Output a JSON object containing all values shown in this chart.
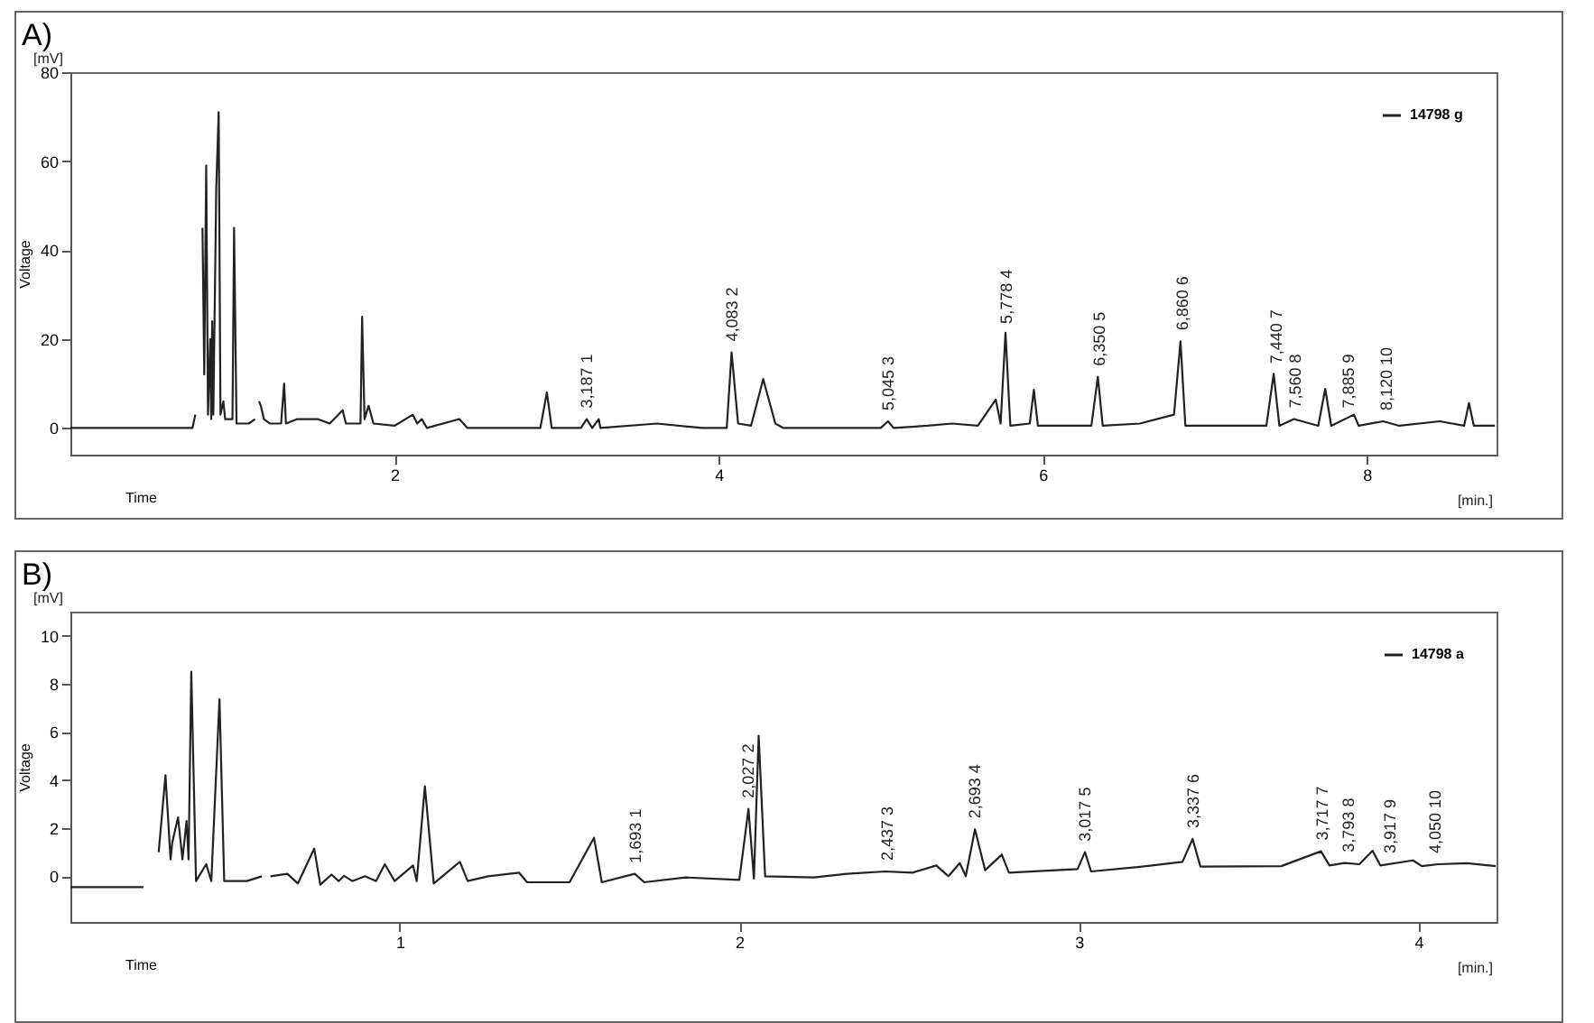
{
  "chart_data": [
    {
      "type": "line",
      "title": "A)",
      "xlabel": "Time",
      "ylabel": "Voltage",
      "annotations": [
        "[mV]",
        "[min.]",
        {
          "text": "3,187  1",
          "x": 3.187,
          "y": 2
        },
        {
          "text": "4,083  2",
          "x": 4.083,
          "y": 17
        },
        {
          "text": "5,045  3",
          "x": 5.045,
          "y": 1.5
        },
        {
          "text": "5,778  4",
          "x": 5.778,
          "y": 21
        },
        {
          "text": "6,350  5",
          "x": 6.35,
          "y": 11.5
        },
        {
          "text": "6,860  6",
          "x": 6.86,
          "y": 19.5
        },
        {
          "text": "7,440  7",
          "x": 7.44,
          "y": 12
        },
        {
          "text": "7,560  8",
          "x": 7.56,
          "y": 2
        },
        {
          "text": "7,885  9",
          "x": 7.885,
          "y": 2
        },
        {
          "text": "8,120  10",
          "x": 8.12,
          "y": 1.5
        }
      ],
      "xlim": [
        0,
        8.8
      ],
      "xticks": [
        2,
        4,
        6,
        8
      ],
      "ylim": [
        -6,
        80
      ],
      "yticks": [
        0,
        20,
        40,
        60,
        80
      ],
      "grid": false,
      "legend": "top right",
      "line_style": "solid",
      "marker": "none",
      "series": [
        {
          "name": "14798 g",
          "color": "#222222",
          "x": [
            0,
            0.753,
            0.771,
            0.789,
            0.81,
            0.815,
            0.826,
            0.838,
            0.849,
            0.863,
            0.869,
            0.875,
            0.882,
            0.9,
            0.915,
            0.926,
            0.944,
            0.955,
            1.0,
            1.01,
            1.025,
            1.05,
            1.1,
            1.139,
            1.15,
            1.16,
            1.164,
            1.175,
            1.194,
            1.23,
            1.3,
            1.319,
            1.33,
            1.4,
            1.47,
            1.525,
            1.6,
            1.68,
            1.7,
            1.79,
            1.8,
            1.815,
            1.84,
            1.87,
            2.0,
            2.113,
            2.14,
            2.168,
            2.2,
            2.4,
            2.45,
            2.9,
            2.94,
            2.97,
            3.15,
            3.186,
            3.22,
            3.26,
            3.27,
            3.62,
            3.9,
            4.05,
            4.08,
            4.12,
            4.2,
            4.275,
            4.35,
            4.4,
            5.0,
            5.045,
            5.08,
            5.29,
            5.44,
            5.6,
            5.71,
            5.74,
            5.77,
            5.8,
            5.92,
            5.945,
            5.97,
            6.3,
            6.34,
            6.37,
            6.6,
            6.81,
            6.85,
            6.88,
            7.38,
            7.425,
            7.46,
            7.55,
            7.7,
            7.743,
            7.78,
            7.92,
            7.95,
            8.1,
            8.2,
            8.45,
            8.6,
            8.63,
            8.66,
            8.79
          ],
          "values": [
            0,
            0,
            3,
            null,
            null,
            45,
            12,
            59,
            3,
            20,
            2,
            24,
            3,
            54,
            71,
            3,
            6,
            2,
            2,
            45,
            1,
            1,
            1,
            2,
            null,
            null,
            6,
            5,
            2,
            1,
            1,
            10,
            1,
            2,
            2,
            2,
            1,
            4,
            1,
            1,
            25,
            2,
            5,
            1,
            0.5,
            3,
            1,
            2,
            0,
            2,
            0,
            0,
            8,
            0,
            0,
            2,
            0,
            2,
            0,
            1,
            0,
            0,
            17,
            1,
            0.5,
            11,
            1,
            0,
            0,
            1.5,
            0,
            0.5,
            1,
            0.5,
            6.4,
            1,
            21.4,
            0.5,
            1,
            8.6,
            0.5,
            0.5,
            11.5,
            0.5,
            1,
            3,
            19.5,
            0.5,
            0.5,
            12.2,
            0.5,
            2,
            0.5,
            8.8,
            0.5,
            3,
            0.5,
            1.5,
            0.5,
            1.5,
            0.5,
            5.6,
            0.5,
            0.5
          ]
        }
      ]
    },
    {
      "type": "line",
      "title": "B)",
      "xlabel": "Time",
      "ylabel": "Voltage",
      "annotations": [
        "[mV]",
        "[min.]",
        {
          "text": "1,693  1",
          "x": 1.693,
          "y": 0.1
        },
        {
          "text": "2,027  2",
          "x": 2.027,
          "y": 2.8
        },
        {
          "text": "2,437  3",
          "x": 2.437,
          "y": 0.2
        },
        {
          "text": "2,693  4",
          "x": 2.693,
          "y": 1.95
        },
        {
          "text": "3,017  5",
          "x": 3.017,
          "y": 1.0
        },
        {
          "text": "3,337  6",
          "x": 3.337,
          "y": 1.55
        },
        {
          "text": "3,717  7",
          "x": 3.717,
          "y": 1.04
        },
        {
          "text": "3,793  8",
          "x": 3.793,
          "y": 0.55
        },
        {
          "text": "3,917  9",
          "x": 3.917,
          "y": 0.5
        },
        {
          "text": "4,050  10",
          "x": 4.05,
          "y": 0.5
        }
      ],
      "xlim": [
        0.03,
        4.23
      ],
      "xticks": [
        1,
        2,
        3,
        4
      ],
      "ylim": [
        -1.9,
        11
      ],
      "yticks": [
        0,
        2,
        4,
        6,
        8,
        10
      ],
      "grid": false,
      "legend": "top right",
      "line_style": "solid",
      "marker": "none",
      "series": [
        {
          "name": "14798 a",
          "color": "#222222",
          "x": [
            0.03,
            0.245,
            0.25,
            0.275,
            0.29,
            0.31,
            0.325,
            0.33,
            0.347,
            0.36,
            0.372,
            0.378,
            0.386,
            0.4,
            0.43,
            0.445,
            0.469,
            0.483,
            0.55,
            0.594,
            0.602,
            0.612,
            0.619,
            0.669,
            0.7,
            0.748,
            0.766,
            0.799,
            0.82,
            0.836,
            0.86,
            0.898,
            0.93,
            0.956,
            0.985,
            1.039,
            1.05,
            1.074,
            1.1,
            1.177,
            1.2,
            1.26,
            1.351,
            1.375,
            1.5,
            1.572,
            1.595,
            1.692,
            1.72,
            1.842,
            2.0,
            2.027,
            2.043,
            2.057,
            2.076,
            2.22,
            2.317,
            2.43,
            2.51,
            2.58,
            2.616,
            2.649,
            2.667,
            2.694,
            2.724,
            2.773,
            2.794,
            2.996,
            3.018,
            3.036,
            3.173,
            3.305,
            3.335,
            3.358,
            3.596,
            3.713,
            3.738,
            3.782,
            3.826,
            3.865,
            3.888,
            3.984,
            4.01,
            4.058,
            4.143,
            4.228
          ],
          "values": [
            -0.45,
            -0.45,
            null,
            null,
            1.0,
            4.2,
            0.7,
            1.4,
            2.45,
            0.7,
            2.3,
            0.7,
            8.5,
            -0.2,
            0.5,
            -0.2,
            7.36,
            -0.2,
            -0.2,
            0,
            null,
            null,
            0,
            0.1,
            -0.3,
            1.15,
            -0.35,
            0.07,
            -0.2,
            0.02,
            -0.2,
            0,
            -0.2,
            0.5,
            -0.2,
            0.45,
            -0.2,
            3.74,
            -0.3,
            0.6,
            -0.2,
            0,
            0.15,
            -0.25,
            -0.25,
            1.6,
            -0.25,
            0.1,
            -0.25,
            -0.05,
            -0.15,
            2.8,
            -0.1,
            5.84,
            0,
            -0.05,
            0.1,
            0.2,
            0.15,
            0.45,
            0,
            0.55,
            0,
            1.95,
            0.25,
            0.9,
            0.15,
            0.3,
            1.0,
            0.2,
            0.38,
            0.6,
            1.55,
            0.4,
            0.42,
            1.04,
            0.45,
            0.55,
            0.5,
            1.06,
            0.45,
            0.66,
            0.42,
            0.5,
            0.54,
            0.42
          ]
        }
      ]
    }
  ]
}
